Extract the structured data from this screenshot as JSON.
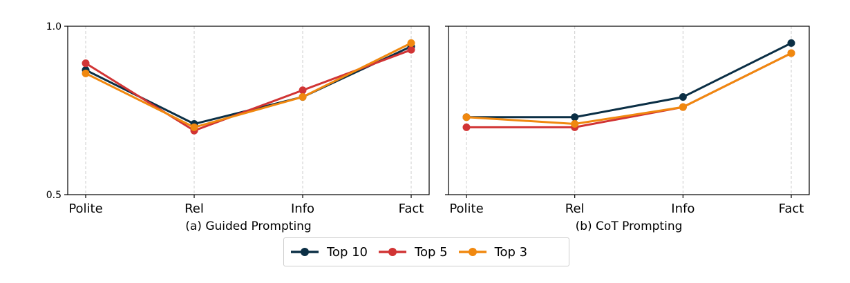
{
  "chart_data": [
    {
      "type": "line",
      "title": "(a) Guided Prompting",
      "categories": [
        "Polite",
        "Rel",
        "Info",
        "Fact"
      ],
      "ylim": [
        0.5,
        1.0
      ],
      "yticks": [
        "0.5",
        "1.0"
      ],
      "grid": "vertical dashed",
      "series": [
        {
          "name": "Top 10",
          "color": "#0b2f45",
          "values": [
            0.87,
            0.71,
            0.79,
            0.94
          ]
        },
        {
          "name": "Top 5",
          "color": "#d13434",
          "values": [
            0.89,
            0.69,
            0.81,
            0.93
          ]
        },
        {
          "name": "Top 3",
          "color": "#f0880f",
          "values": [
            0.86,
            0.7,
            0.79,
            0.95
          ]
        }
      ]
    },
    {
      "type": "line",
      "title": "(b) CoT Prompting",
      "categories": [
        "Polite",
        "Rel",
        "Info",
        "Fact"
      ],
      "ylim": [
        0.5,
        1.0
      ],
      "yticks": [],
      "grid": "vertical dashed",
      "series": [
        {
          "name": "Top 10",
          "color": "#0b2f45",
          "values": [
            0.73,
            0.73,
            0.79,
            0.95
          ]
        },
        {
          "name": "Top 5",
          "color": "#d13434",
          "values": [
            0.7,
            0.7,
            0.76,
            0.92
          ]
        },
        {
          "name": "Top 3",
          "color": "#f0880f",
          "values": [
            0.73,
            0.71,
            0.76,
            0.92
          ]
        }
      ]
    }
  ],
  "legend": {
    "position": "bottom-center",
    "entries": [
      {
        "label": "Top 10",
        "color": "#0b2f45"
      },
      {
        "label": "Top 5",
        "color": "#d13434"
      },
      {
        "label": "Top 3",
        "color": "#f0880f"
      }
    ]
  }
}
